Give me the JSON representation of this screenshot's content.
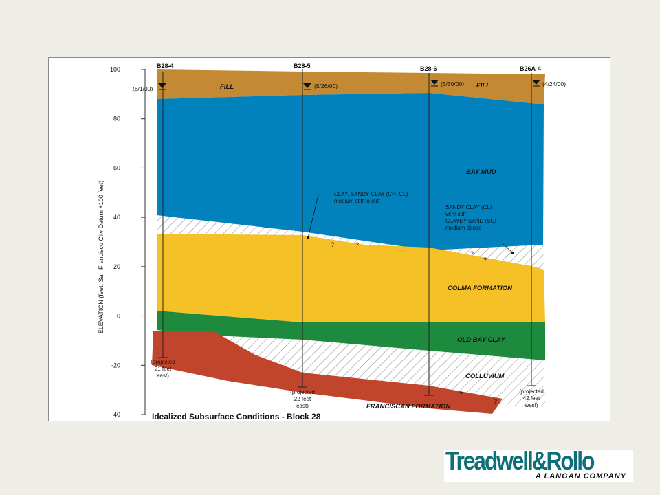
{
  "diagram": {
    "title": "Idealized Subsurface Conditions - Block 28",
    "y_axis": {
      "label": "ELEVATION (feet, San Francisco City Datum +100 feet)",
      "ticks": [
        "100",
        "80",
        "60",
        "40",
        "20",
        "0",
        "-20",
        "-40"
      ]
    },
    "borings": [
      {
        "id": "B28-4",
        "date": "(6/1/00)",
        "note": [
          "(projected",
          "21 feet",
          "east)"
        ]
      },
      {
        "id": "B28-5",
        "date": "(5/26/00)",
        "note": [
          "(projected",
          "22 feet",
          "east)"
        ]
      },
      {
        "id": "B28-6",
        "date": "(5/30/00)",
        "note": []
      },
      {
        "id": "B26A-4",
        "date": "(4/24/00)",
        "note": [
          "(projected",
          "42 feet",
          "west)"
        ]
      }
    ],
    "layers": {
      "fill_left": "FILL",
      "fill_right": "FILL",
      "bay_mud": "BAY MUD",
      "colma": "COLMA FORMATION",
      "old_bay_clay": "OLD BAY CLAY",
      "colluvium": "COLLUVIUM",
      "franciscan": "FRANCISCAN FORMATION"
    },
    "callouts": {
      "clay": [
        "CLAY, SANDY CLAY (CH, CL)",
        "medium stiff to stiff"
      ],
      "sandy": [
        "SANDY CLAY (CL)",
        "very stiff",
        "CLAYEY SAND (SC)",
        "medium dense"
      ]
    },
    "question_mark": "?",
    "colors": {
      "fill": "#c48a33",
      "bay_mud": "#0282bd",
      "colma": "#f6c126",
      "old_bay_clay": "#1e8a3d",
      "franciscan": "#c1452d",
      "hatch": "#9a9a9a"
    }
  },
  "logo": {
    "name": "Treadwell&Rollo",
    "tagline": "A LANGAN COMPANY"
  }
}
